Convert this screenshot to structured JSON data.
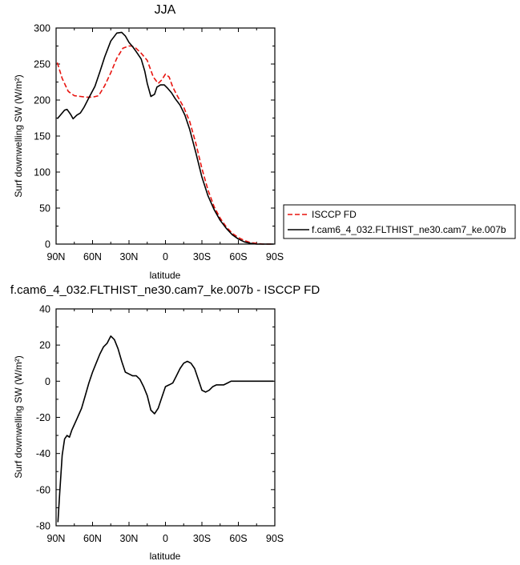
{
  "chart_data": [
    {
      "type": "line",
      "title": "JJA",
      "xlabel": "latitude",
      "ylabel": "Surf downwelling SW (W/m²)",
      "xlim": [
        90,
        -90
      ],
      "ylim": [
        0,
        300
      ],
      "xticks": [
        90,
        60,
        30,
        0,
        -30,
        -60,
        -90
      ],
      "xtick_labels": [
        "90N",
        "60N",
        "30N",
        "0",
        "30S",
        "60S",
        "90S"
      ],
      "yticks": [
        0,
        50,
        100,
        150,
        200,
        250,
        300
      ],
      "ytick_labels": [
        "0",
        "50",
        "100",
        "150",
        "200",
        "250",
        "300"
      ],
      "grid": false,
      "legend_position": "right",
      "series": [
        {
          "name": "ISCCP FD",
          "color": "#e8140f",
          "dash": "dashed",
          "x": [
            89,
            85,
            80,
            75,
            70,
            65,
            60,
            55,
            50,
            45,
            40,
            35,
            30,
            28,
            25,
            20,
            15,
            10,
            6,
            3,
            0,
            -3,
            -6,
            -10,
            -15,
            -20,
            -25,
            -30,
            -35,
            -40,
            -45,
            -50,
            -55,
            -60,
            -65,
            -70,
            -75,
            -80,
            -84,
            -88
          ],
          "y": [
            252,
            230,
            212,
            206,
            205,
            204,
            204,
            206,
            220,
            238,
            258,
            272,
            275,
            275,
            273,
            265,
            255,
            232,
            223,
            228,
            236,
            232,
            218,
            205,
            190,
            170,
            140,
            105,
            75,
            52,
            36,
            24,
            15,
            9,
            5,
            2,
            1,
            0,
            0,
            0
          ]
        },
        {
          "name": "f.cam6_4_032.FLTHIST_ne30.cam7_ke.007b",
          "color": "#000000",
          "dash": "solid",
          "x": [
            89,
            86,
            83,
            81,
            78,
            76,
            73,
            70,
            67,
            63,
            58,
            54,
            50,
            45,
            40,
            36,
            33,
            30,
            27,
            24,
            20,
            17,
            15,
            12,
            9,
            7,
            4,
            1,
            -2,
            -5,
            -8,
            -12,
            -16,
            -20,
            -25,
            -30,
            -35,
            -40,
            -45,
            -50,
            -55,
            -60,
            -65,
            -70,
            -75,
            -80,
            -85,
            -89
          ],
          "y": [
            174,
            180,
            186,
            187,
            180,
            174,
            179,
            182,
            190,
            203,
            219,
            239,
            260,
            282,
            293,
            294,
            289,
            280,
            274,
            267,
            257,
            240,
            223,
            205,
            208,
            218,
            221,
            221,
            216,
            210,
            202,
            193,
            179,
            159,
            127,
            93,
            67,
            48,
            33,
            22,
            13,
            7,
            3,
            1,
            0,
            0,
            0,
            0
          ]
        }
      ]
    },
    {
      "type": "line",
      "title": "f.cam6_4_032.FLTHIST_ne30.cam7_ke.007b - ISCCP FD",
      "xlabel": "latitude",
      "ylabel": "Surf downwelling SW (W/m²)",
      "xlim": [
        90,
        -90
      ],
      "ylim": [
        -80,
        40
      ],
      "xticks": [
        90,
        60,
        30,
        0,
        -30,
        -60,
        -90
      ],
      "xtick_labels": [
        "90N",
        "60N",
        "30N",
        "0",
        "30S",
        "60S",
        "90S"
      ],
      "yticks": [
        40,
        20,
        0,
        -20,
        -40,
        -60,
        -80
      ],
      "ytick_labels": [
        "40",
        "20",
        "0",
        "-20",
        "-40",
        "-60",
        "-80"
      ],
      "grid": false,
      "series": [
        {
          "color": "#000000",
          "dash": "solid",
          "x": [
            88.5,
            87,
            85,
            83,
            81,
            79,
            77,
            75,
            73,
            71,
            69,
            66,
            63,
            60,
            57,
            54,
            51,
            48,
            45,
            42,
            39,
            36,
            33,
            30,
            27,
            24,
            21,
            18,
            15,
            12,
            9,
            6,
            3,
            0,
            -3,
            -6,
            -9,
            -12,
            -15,
            -18,
            -21,
            -24,
            -27,
            -30,
            -33,
            -36,
            -39,
            -42,
            -45,
            -48,
            -51,
            -54,
            -57,
            -60,
            -63,
            -66,
            -69,
            -72,
            -75,
            -80,
            -85,
            -89
          ],
          "y": [
            -78,
            -62,
            -41,
            -32,
            -30,
            -31,
            -27,
            -24,
            -21,
            -18,
            -15,
            -8,
            -1,
            5,
            10,
            15,
            19,
            21,
            25,
            23,
            18,
            11,
            5,
            4,
            3,
            3,
            1,
            -3,
            -8,
            -16,
            -18,
            -15,
            -9,
            -3,
            -2,
            -1,
            3,
            7,
            10,
            11,
            10,
            7,
            1,
            -5,
            -6,
            -5,
            -3,
            -2,
            -2,
            -2,
            -1,
            0,
            0,
            0,
            0,
            0,
            0,
            0,
            0,
            0,
            0,
            0
          ]
        }
      ]
    }
  ]
}
